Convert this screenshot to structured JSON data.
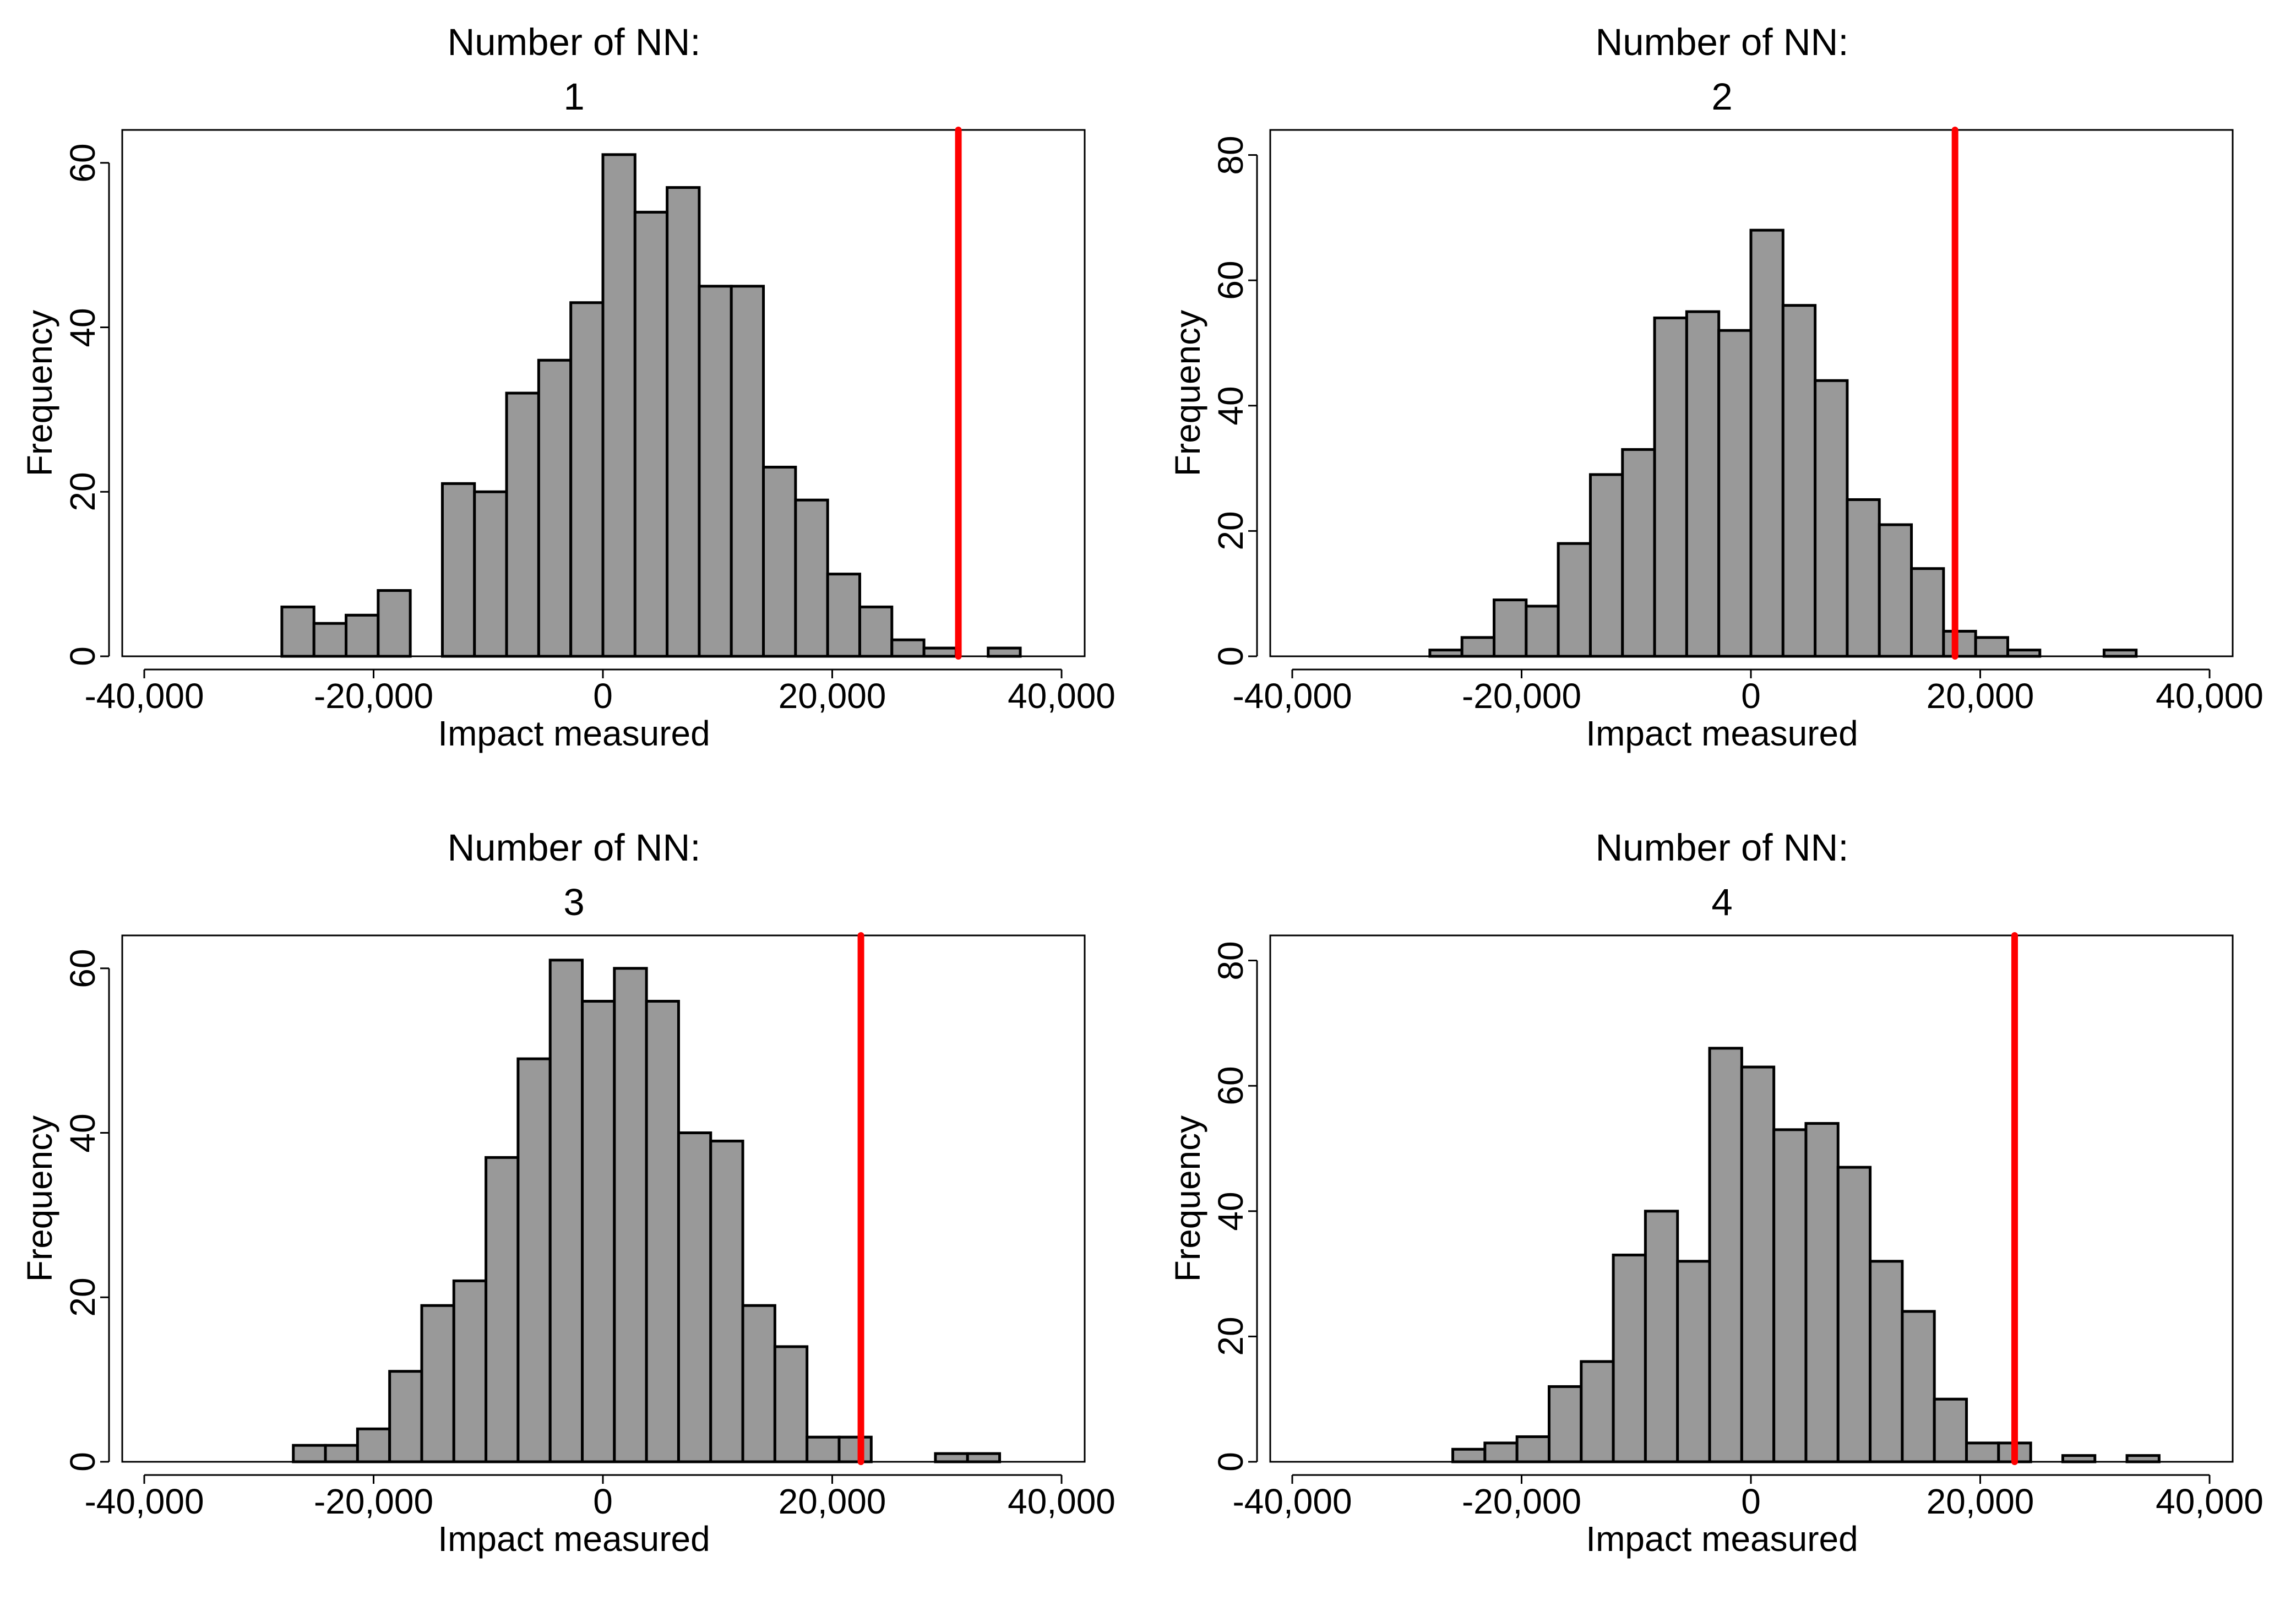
{
  "chart_data": [
    {
      "type": "histogram",
      "title_line1": "Number of NN:",
      "title_line2": "1",
      "xlabel": "Impact measured",
      "ylabel": "Frequency",
      "xlim": [
        -40000,
        40000
      ],
      "ylim": [
        0,
        64
      ],
      "xticks": [
        -40000,
        -20000,
        0,
        20000,
        40000
      ],
      "xtick_labels": [
        "-40,000",
        "-20,000",
        "0",
        "20,000",
        "40,000"
      ],
      "yticks": [
        0,
        20,
        40,
        60
      ],
      "ytick_labels": [
        "0",
        "20",
        "40",
        "60"
      ],
      "bin_start": -28000,
      "bin_width": 2800,
      "bin_counts": [
        6,
        4,
        5,
        8,
        0,
        21,
        20,
        32,
        36,
        43,
        61,
        54,
        57,
        45,
        45,
        23,
        19,
        10,
        6,
        2,
        1,
        0,
        1
      ],
      "bar_color": "#999999",
      "reference_line": {
        "x": 31000,
        "color": "#ff0000"
      }
    },
    {
      "type": "histogram",
      "title_line1": "Number of NN:",
      "title_line2": "2",
      "xlabel": "Impact measured",
      "ylabel": "Frequency",
      "xlim": [
        -40000,
        40000
      ],
      "ylim": [
        0,
        84
      ],
      "xticks": [
        -40000,
        -20000,
        0,
        20000,
        40000
      ],
      "xtick_labels": [
        "-40,000",
        "-20,000",
        "0",
        "20,000",
        "40,000"
      ],
      "yticks": [
        0,
        20,
        40,
        60,
        80
      ],
      "ytick_labels": [
        "0",
        "20",
        "40",
        "60",
        "80"
      ],
      "bin_start": -28000,
      "bin_width": 2800,
      "bin_counts": [
        1,
        3,
        9,
        8,
        18,
        29,
        33,
        54,
        55,
        52,
        68,
        56,
        44,
        25,
        21,
        14,
        4,
        3,
        1,
        0,
        0,
        1
      ],
      "bar_color": "#999999",
      "reference_line": {
        "x": 17800,
        "color": "#ff0000"
      }
    },
    {
      "type": "histogram",
      "title_line1": "Number of NN:",
      "title_line2": "3",
      "xlabel": "Impact measured",
      "ylabel": "Frequency",
      "xlim": [
        -40000,
        40000
      ],
      "ylim": [
        0,
        64
      ],
      "xticks": [
        -40000,
        -20000,
        0,
        20000,
        40000
      ],
      "xtick_labels": [
        "-40,000",
        "-20,000",
        "0",
        "20,000",
        "40,000"
      ],
      "yticks": [
        0,
        20,
        40,
        60
      ],
      "ytick_labels": [
        "0",
        "20",
        "40",
        "60"
      ],
      "bin_start": -27000,
      "bin_width": 2800,
      "bin_counts": [
        2,
        2,
        4,
        11,
        19,
        22,
        37,
        49,
        61,
        56,
        60,
        56,
        40,
        39,
        19,
        14,
        3,
        3,
        0,
        0,
        1,
        1
      ],
      "bar_color": "#999999",
      "reference_line": {
        "x": 22500,
        "color": "#ff0000"
      }
    },
    {
      "type": "histogram",
      "title_line1": "Number of NN:",
      "title_line2": "4",
      "xlabel": "Impact measured",
      "ylabel": "Frequency",
      "xlim": [
        -40000,
        40000
      ],
      "ylim": [
        0,
        84
      ],
      "xticks": [
        -40000,
        -20000,
        0,
        20000,
        40000
      ],
      "xtick_labels": [
        "-40,000",
        "-20,000",
        "0",
        "20,000",
        "40,000"
      ],
      "yticks": [
        0,
        20,
        40,
        60,
        80
      ],
      "ytick_labels": [
        "0",
        "20",
        "40",
        "60",
        "80"
      ],
      "bin_start": -26000,
      "bin_width": 2800,
      "bin_counts": [
        2,
        3,
        4,
        12,
        16,
        33,
        40,
        32,
        66,
        63,
        53,
        54,
        47,
        32,
        24,
        10,
        3,
        3,
        0,
        1,
        0,
        1
      ],
      "bar_color": "#999999",
      "reference_line": {
        "x": 23000,
        "color": "#ff0000"
      }
    }
  ]
}
